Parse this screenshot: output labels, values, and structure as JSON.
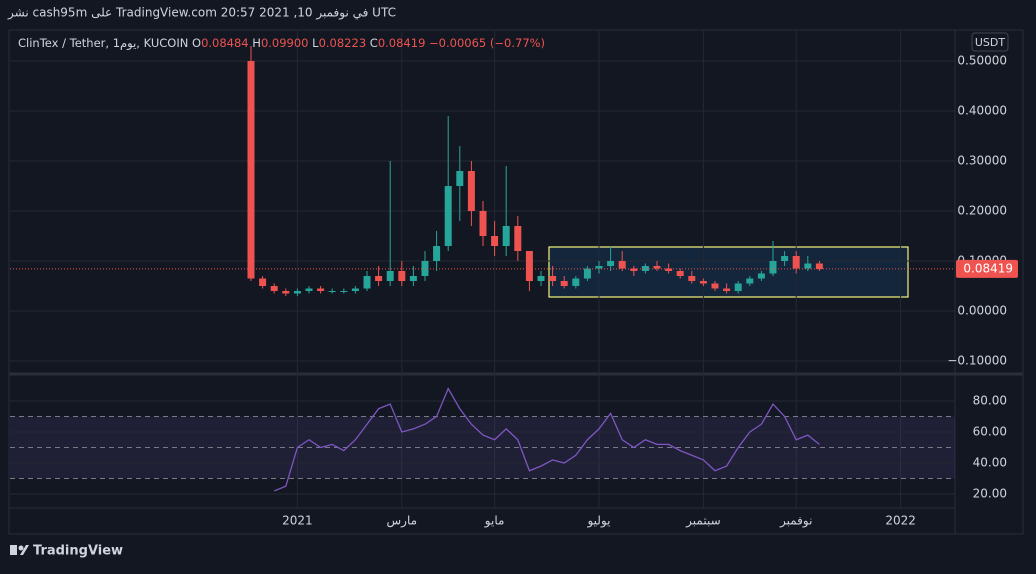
{
  "header": {
    "published": "نشر cash95m على TradingView.com 20:57 2021 ,10 في نوفمبر UTC",
    "currency": "USDT",
    "brand": "TradingView"
  },
  "chart_data": [
    {
      "type": "candlestick",
      "symbol": "ClinTex / Tether, 1يوم, KUCOIN",
      "legend_keys": [
        "O",
        "H",
        "L",
        "C"
      ],
      "legend_values": [
        {
          "value": 0.08484,
          "label": "0.08484"
        },
        {
          "value": 0.099,
          "label": "0.09900"
        },
        {
          "value": 0.08223,
          "label": "0.08223"
        },
        {
          "value": 0.08419,
          "label": "0.08419"
        }
      ],
      "change": {
        "value": -0.00065,
        "label": "−0.00065"
      },
      "change_percent": {
        "value": -0.77,
        "label": "(−0.77%)"
      },
      "last": {
        "value": 0.08419,
        "label": "0.08419"
      },
      "categories": [
        null,
        null,
        null,
        null,
        "2021",
        null,
        null,
        null,
        null,
        null,
        null,
        null,
        null,
        "مارس",
        null,
        null,
        null,
        null,
        null,
        null,
        null,
        "مايو",
        null,
        null,
        null,
        null,
        null,
        null,
        null,
        null,
        "يوليو",
        null,
        null,
        null,
        null,
        null,
        null,
        null,
        null,
        "سبتمبر",
        null,
        null,
        null,
        null,
        null,
        null,
        null,
        "نوفمبر",
        null,
        null,
        null,
        null,
        null,
        null,
        null,
        null,
        "2022"
      ],
      "open": [
        0.5,
        0.065,
        0.05,
        0.04,
        0.035,
        0.04,
        0.045,
        0.04,
        0.04,
        0.04,
        0.045,
        0.07,
        0.06,
        0.08,
        0.06,
        0.07,
        0.1,
        0.13,
        0.25,
        0.28,
        0.2,
        0.15,
        0.13,
        0.17,
        0.12,
        0.06,
        0.07,
        0.06,
        0.05,
        0.065,
        0.085,
        0.09,
        0.1,
        0.085,
        0.08,
        0.09,
        0.085,
        0.08,
        0.07,
        0.06,
        0.055,
        0.045,
        0.04,
        0.055,
        0.065,
        0.075,
        0.1,
        0.11,
        0.085,
        0.095,
        null,
        null,
        null,
        null,
        null,
        null,
        null
      ],
      "high": [
        0.53,
        0.07,
        0.055,
        0.045,
        0.045,
        0.05,
        0.05,
        0.045,
        0.045,
        0.05,
        0.08,
        0.09,
        0.3,
        0.1,
        0.09,
        0.12,
        0.16,
        0.39,
        0.33,
        0.3,
        0.22,
        0.18,
        0.29,
        0.19,
        0.12,
        0.08,
        0.09,
        0.07,
        0.07,
        0.09,
        0.1,
        0.13,
        0.12,
        0.09,
        0.095,
        0.1,
        0.095,
        0.085,
        0.08,
        0.065,
        0.06,
        0.055,
        0.06,
        0.07,
        0.08,
        0.14,
        0.12,
        0.12,
        0.11,
        0.1,
        null,
        null,
        null,
        null,
        null,
        null,
        null
      ],
      "low": [
        0.06,
        0.045,
        0.035,
        0.03,
        0.03,
        0.035,
        0.035,
        0.035,
        0.035,
        0.035,
        0.04,
        0.05,
        0.05,
        0.05,
        0.05,
        0.06,
        0.08,
        0.12,
        0.18,
        0.17,
        0.13,
        0.11,
        0.11,
        0.1,
        0.04,
        0.05,
        0.05,
        0.045,
        0.045,
        0.06,
        0.075,
        0.08,
        0.08,
        0.07,
        0.075,
        0.08,
        0.075,
        0.065,
        0.055,
        0.05,
        0.04,
        0.035,
        0.035,
        0.05,
        0.06,
        0.07,
        0.09,
        0.075,
        0.08,
        0.08,
        null,
        null,
        null,
        null,
        null,
        null,
        null
      ],
      "close": [
        0.065,
        0.05,
        0.04,
        0.035,
        0.04,
        0.045,
        0.04,
        0.04,
        0.04,
        0.045,
        0.07,
        0.06,
        0.08,
        0.06,
        0.07,
        0.1,
        0.13,
        0.25,
        0.28,
        0.2,
        0.15,
        0.13,
        0.17,
        0.12,
        0.06,
        0.07,
        0.06,
        0.05,
        0.065,
        0.085,
        0.09,
        0.1,
        0.085,
        0.08,
        0.09,
        0.085,
        0.08,
        0.07,
        0.06,
        0.055,
        0.045,
        0.04,
        0.055,
        0.065,
        0.075,
        0.1,
        0.11,
        0.085,
        0.095,
        0.084,
        null,
        null,
        null,
        null,
        null,
        null,
        null
      ],
      "up_color": "#26a69a",
      "down_color": "#ef5350",
      "ylim": [
        -0.122,
        0.532
      ],
      "yticks": [
        {
          "value": 0.5,
          "label": "0.50000"
        },
        {
          "value": 0.4,
          "label": "0.40000"
        },
        {
          "value": 0.3,
          "label": "0.30000"
        },
        {
          "value": 0.2,
          "label": "0.20000"
        },
        {
          "value": 0.1,
          "label": "0.10000"
        },
        {
          "value": 0,
          "label": "0.00000"
        },
        {
          "value": -0.1,
          "label": "−0.10000"
        }
      ],
      "grid": true
    },
    {
      "type": "line",
      "color": "#7e57c2",
      "values": [
        null,
        null,
        22,
        25,
        50,
        55,
        50,
        52,
        48,
        55,
        65,
        75,
        78,
        60,
        62,
        65,
        70,
        88,
        75,
        65,
        58,
        55,
        62,
        55,
        35,
        38,
        42,
        40,
        45,
        55,
        62,
        72,
        55,
        50,
        55,
        52,
        52,
        48,
        45,
        42,
        35,
        38,
        50,
        60,
        65,
        78,
        70,
        55,
        58,
        52,
        null,
        null,
        null,
        null,
        null,
        null,
        null
      ],
      "levels": [
        70,
        50,
        30
      ],
      "ylim": [
        11,
        94.8
      ],
      "yticks": [
        {
          "value": 80,
          "label": "80.00"
        },
        {
          "value": 60,
          "label": "60.00"
        },
        {
          "value": 40,
          "label": "40.00"
        },
        {
          "value": 20,
          "label": "20.00"
        }
      ],
      "grid": true
    }
  ]
}
